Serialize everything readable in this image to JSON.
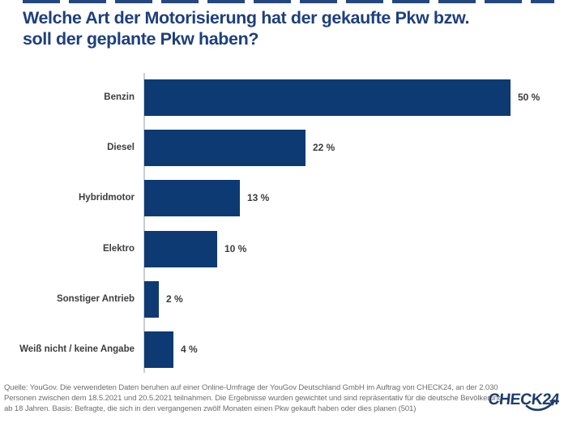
{
  "page": {
    "background": "#ffffff"
  },
  "header": {
    "title_line1": "Welche Art der Motorisierung hat der gekaufte Pkw bzw.",
    "title_line2": "soll der geplante Pkw haben?",
    "title_color": "#1d3f7e"
  },
  "chart_data": {
    "type": "bar",
    "orientation": "horizontal",
    "title": "Welche Art der Motorisierung hat der gekaufte Pkw bzw. soll der geplante Pkw haben?",
    "categories": [
      "Benzin",
      "Diesel",
      "Hybridmotor",
      "Elektro",
      "Sonstiger Antrieb",
      "Weiß nicht / keine Angabe"
    ],
    "values": [
      50,
      22,
      13,
      10,
      2,
      4
    ],
    "value_labels": [
      "50 %",
      "22 %",
      "13 %",
      "10 %",
      "2 %",
      "4 %"
    ],
    "unit": "%",
    "xlabel": "",
    "ylabel": "",
    "xlim": [
      0,
      55
    ],
    "grid": false,
    "legend": false,
    "bar_color": "#0d3a73",
    "axis_color": "#c9cdd2",
    "label_color": "#3c3c3c"
  },
  "footer": {
    "source_lines": [
      "Quelle: YouGov. Die verwendeten Daten beruhen auf einer Online-Umfrage der YouGov Deutschland GmbH im Auftrag von CHECK24, an der 2.030",
      "Personen zwischen dem 18.5.2021 und 20.5.2021 teilnahmen. Die Ergebnisse wurden gewichtet und sind repräsentativ für die deutsche Bevölkerung",
      "ab 18 Jahren. Basis: Befragte, die sich in den vergangenen zwölf Monaten einen Pkw gekauft haben oder dies planen (501)"
    ],
    "text_color": "#6e6e6e"
  },
  "logo": {
    "text": "CHECK24",
    "color": "#1d3c6e"
  }
}
